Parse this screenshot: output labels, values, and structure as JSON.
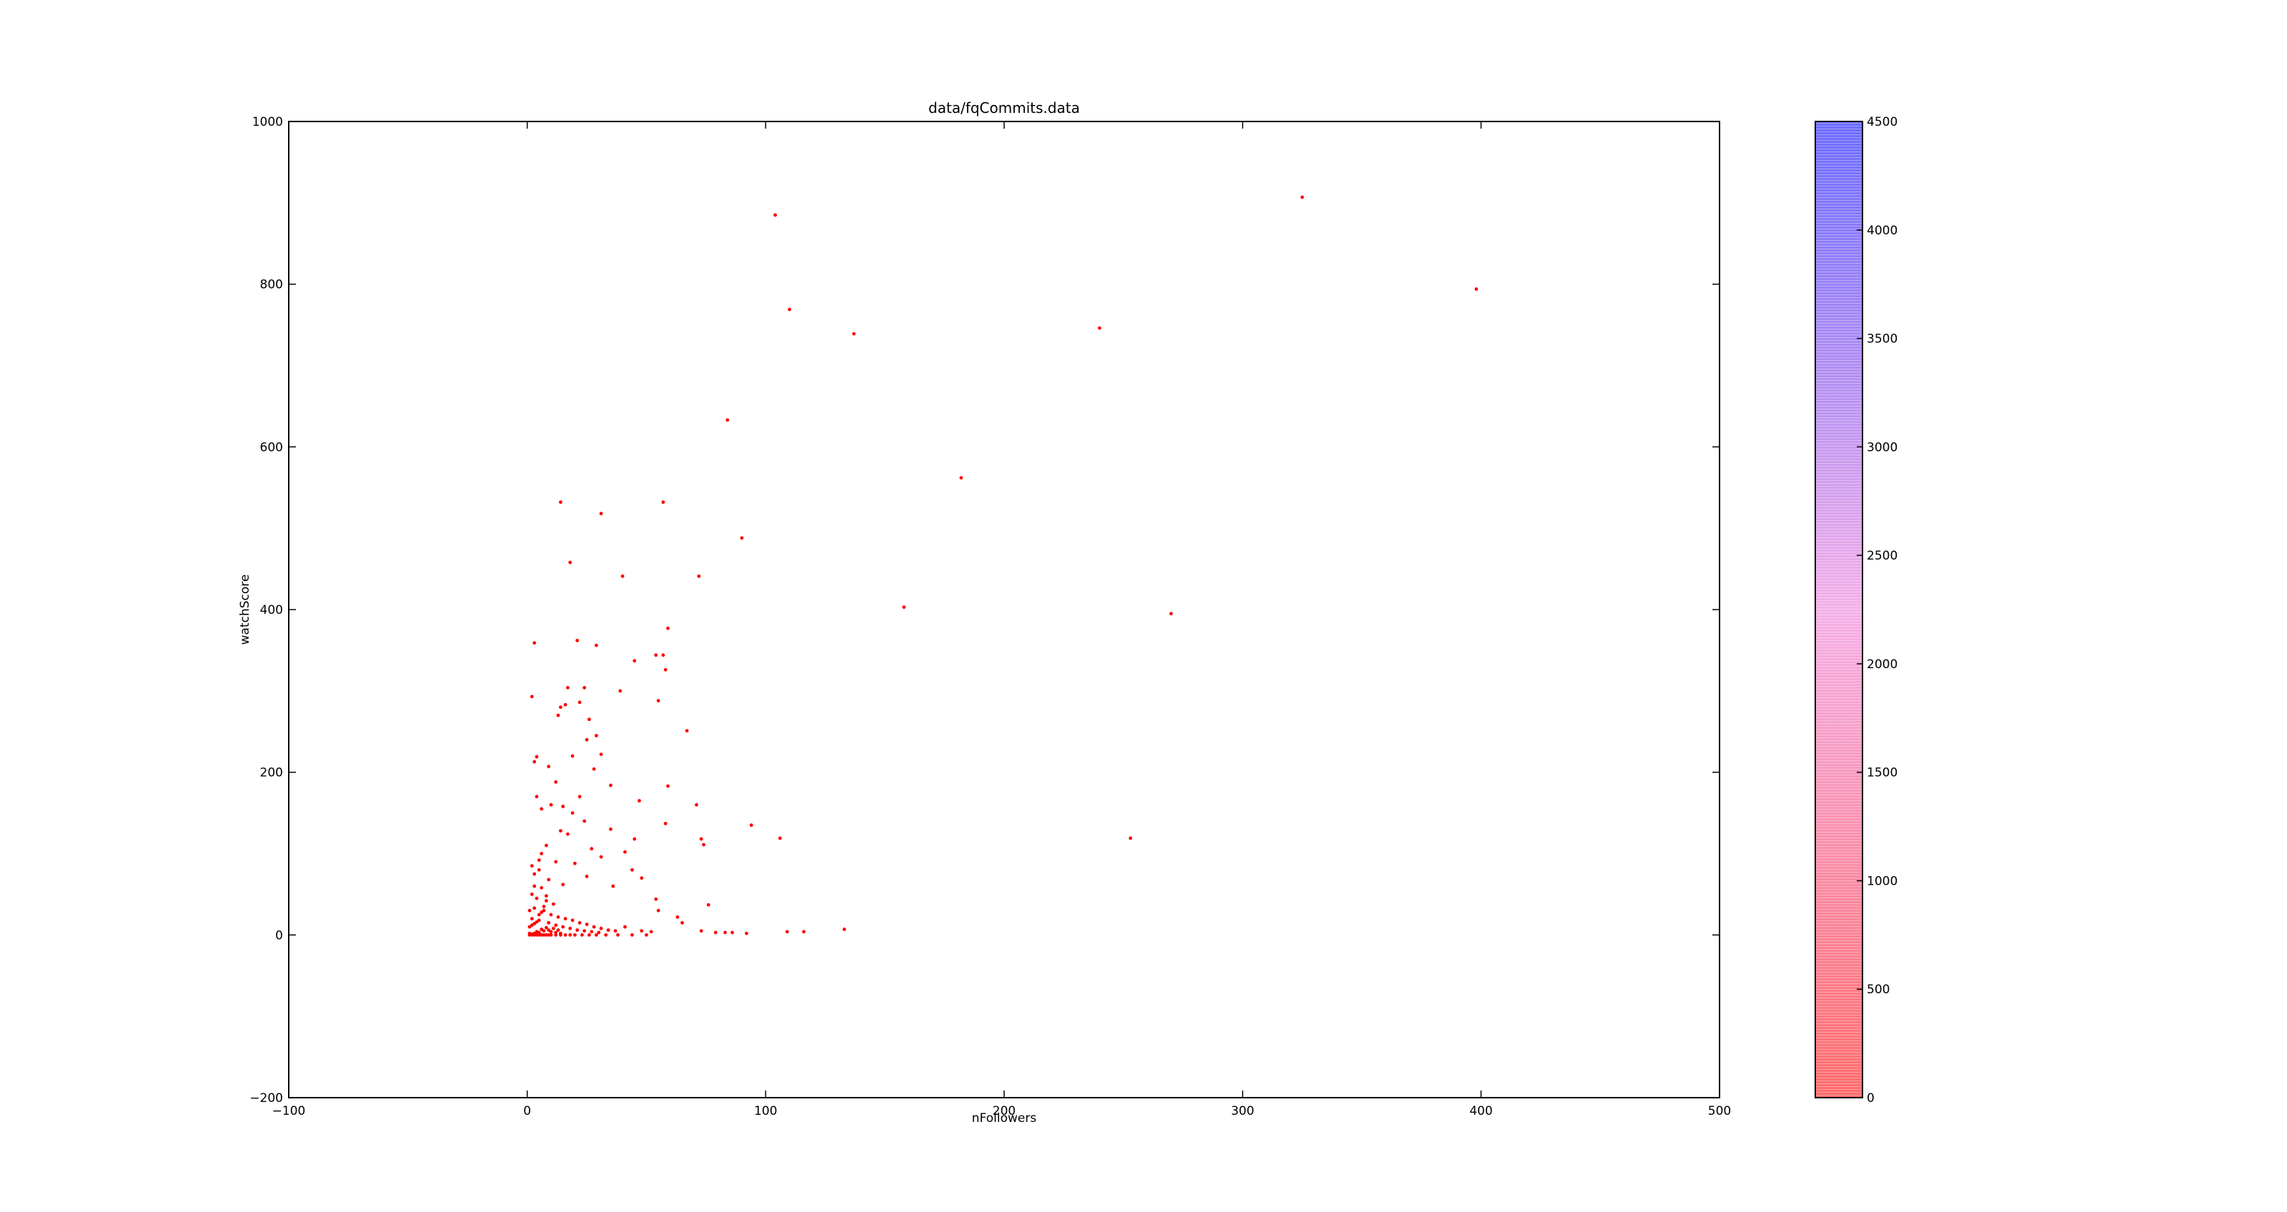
{
  "chart_data": {
    "type": "scatter",
    "title": "data/fqCommits.data",
    "xlabel": "nFollowers",
    "ylabel": "watchScore",
    "xlim": [
      -100,
      500
    ],
    "ylim": [
      -200,
      1000
    ],
    "xticks": [
      -100,
      0,
      100,
      200,
      300,
      400,
      500
    ],
    "yticks": [
      -200,
      0,
      200,
      400,
      600,
      800,
      1000
    ],
    "x_tick_labels": [
      "−100",
      "0",
      "100",
      "200",
      "300",
      "400",
      "500"
    ],
    "y_tick_labels": [
      "−200",
      "0",
      "200",
      "400",
      "600",
      "800",
      "1000"
    ],
    "grid": false,
    "marker_color": "#ff0000",
    "points": [
      [
        104,
        885
      ],
      [
        325,
        907
      ],
      [
        110,
        769
      ],
      [
        137,
        739
      ],
      [
        240,
        746
      ],
      [
        398,
        794
      ],
      [
        84,
        633
      ],
      [
        182,
        562
      ],
      [
        14,
        532
      ],
      [
        31,
        518
      ],
      [
        57,
        532
      ],
      [
        90,
        488
      ],
      [
        18,
        458
      ],
      [
        40,
        441
      ],
      [
        72,
        441
      ],
      [
        158,
        403
      ],
      [
        270,
        395
      ],
      [
        3,
        359
      ],
      [
        21,
        362
      ],
      [
        29,
        356
      ],
      [
        59,
        377
      ],
      [
        54,
        344
      ],
      [
        57,
        344
      ],
      [
        45,
        337
      ],
      [
        58,
        326
      ],
      [
        17,
        304
      ],
      [
        24,
        304
      ],
      [
        39,
        300
      ],
      [
        2,
        293
      ],
      [
        14,
        280
      ],
      [
        16,
        283
      ],
      [
        22,
        286
      ],
      [
        55,
        288
      ],
      [
        26,
        265
      ],
      [
        13,
        270
      ],
      [
        67,
        251
      ],
      [
        25,
        240
      ],
      [
        29,
        245
      ],
      [
        31,
        222
      ],
      [
        4,
        219
      ],
      [
        19,
        220
      ],
      [
        3,
        213
      ],
      [
        9,
        207
      ],
      [
        28,
        204
      ],
      [
        12,
        188
      ],
      [
        35,
        184
      ],
      [
        59,
        183
      ],
      [
        4,
        170
      ],
      [
        22,
        170
      ],
      [
        47,
        165
      ],
      [
        71,
        160
      ],
      [
        10,
        160
      ],
      [
        15,
        158
      ],
      [
        19,
        150
      ],
      [
        6,
        155
      ],
      [
        24,
        140
      ],
      [
        58,
        137
      ],
      [
        94,
        135
      ],
      [
        35,
        130
      ],
      [
        14,
        128
      ],
      [
        17,
        124
      ],
      [
        45,
        118
      ],
      [
        73,
        118
      ],
      [
        106,
        119
      ],
      [
        253,
        119
      ],
      [
        74,
        111
      ],
      [
        8,
        110
      ],
      [
        27,
        106
      ],
      [
        31,
        96
      ],
      [
        41,
        102
      ],
      [
        12,
        90
      ],
      [
        20,
        88
      ],
      [
        5,
        92
      ],
      [
        2,
        85
      ],
      [
        44,
        80
      ],
      [
        48,
        70
      ],
      [
        25,
        72
      ],
      [
        9,
        68
      ],
      [
        15,
        62
      ],
      [
        36,
        60
      ],
      [
        54,
        44
      ],
      [
        76,
        37
      ],
      [
        55,
        30
      ],
      [
        63,
        22
      ],
      [
        65,
        15
      ],
      [
        73,
        5
      ],
      [
        79,
        3
      ],
      [
        83,
        3
      ],
      [
        86,
        3
      ],
      [
        92,
        2
      ],
      [
        109,
        4
      ],
      [
        116,
        4
      ],
      [
        133,
        7
      ],
      [
        41,
        10
      ],
      [
        48,
        5
      ],
      [
        52,
        4
      ],
      [
        3,
        60
      ],
      [
        6,
        58
      ],
      [
        4,
        45
      ],
      [
        8,
        42
      ],
      [
        11,
        38
      ],
      [
        3,
        33
      ],
      [
        7,
        30
      ],
      [
        10,
        25
      ],
      [
        13,
        22
      ],
      [
        16,
        20
      ],
      [
        19,
        18
      ],
      [
        22,
        15
      ],
      [
        25,
        13
      ],
      [
        28,
        10
      ],
      [
        31,
        8
      ],
      [
        34,
        6
      ],
      [
        37,
        5
      ],
      [
        2,
        20
      ],
      [
        5,
        18
      ],
      [
        9,
        15
      ],
      [
        12,
        12
      ],
      [
        15,
        10
      ],
      [
        18,
        8
      ],
      [
        21,
        6
      ],
      [
        24,
        5
      ],
      [
        27,
        4
      ],
      [
        30,
        3
      ],
      [
        1,
        2
      ],
      [
        2,
        1
      ],
      [
        3,
        2
      ],
      [
        4,
        4
      ],
      [
        5,
        3
      ],
      [
        6,
        7
      ],
      [
        7,
        5
      ],
      [
        8,
        9
      ],
      [
        9,
        6
      ],
      [
        10,
        4
      ],
      [
        11,
        8
      ],
      [
        12,
        3
      ],
      [
        13,
        6
      ],
      [
        14,
        2
      ],
      [
        1,
        10
      ],
      [
        2,
        12
      ],
      [
        3,
        14
      ],
      [
        4,
        16
      ],
      [
        5,
        25
      ],
      [
        6,
        28
      ],
      [
        7,
        35
      ],
      [
        8,
        48
      ],
      [
        2,
        50
      ],
      [
        3,
        75
      ],
      [
        5,
        80
      ],
      [
        6,
        100
      ],
      [
        1,
        30
      ],
      [
        1,
        0
      ],
      [
        2,
        0
      ],
      [
        3,
        0
      ],
      [
        4,
        0
      ],
      [
        5,
        0
      ],
      [
        6,
        0
      ],
      [
        7,
        0
      ],
      [
        8,
        0
      ],
      [
        9,
        0
      ],
      [
        10,
        0
      ],
      [
        12,
        0
      ],
      [
        14,
        0
      ],
      [
        16,
        0
      ],
      [
        18,
        0
      ],
      [
        20,
        0
      ],
      [
        23,
        0
      ],
      [
        26,
        0
      ],
      [
        29,
        0
      ],
      [
        33,
        0
      ],
      [
        38,
        0
      ],
      [
        44,
        0
      ],
      [
        50,
        0
      ]
    ],
    "colorbar": {
      "label": "",
      "range": [
        0,
        4500
      ],
      "ticks": [
        0,
        500,
        1000,
        1500,
        2000,
        2500,
        3000,
        3500,
        4000,
        4500
      ],
      "tick_labels": [
        "0",
        "500",
        "1000",
        "1500",
        "2000",
        "2500",
        "3000",
        "3500",
        "4000",
        "4500"
      ],
      "colors": [
        "#ff6b6b",
        "#f5b0e8",
        "#6b6bff"
      ]
    }
  }
}
